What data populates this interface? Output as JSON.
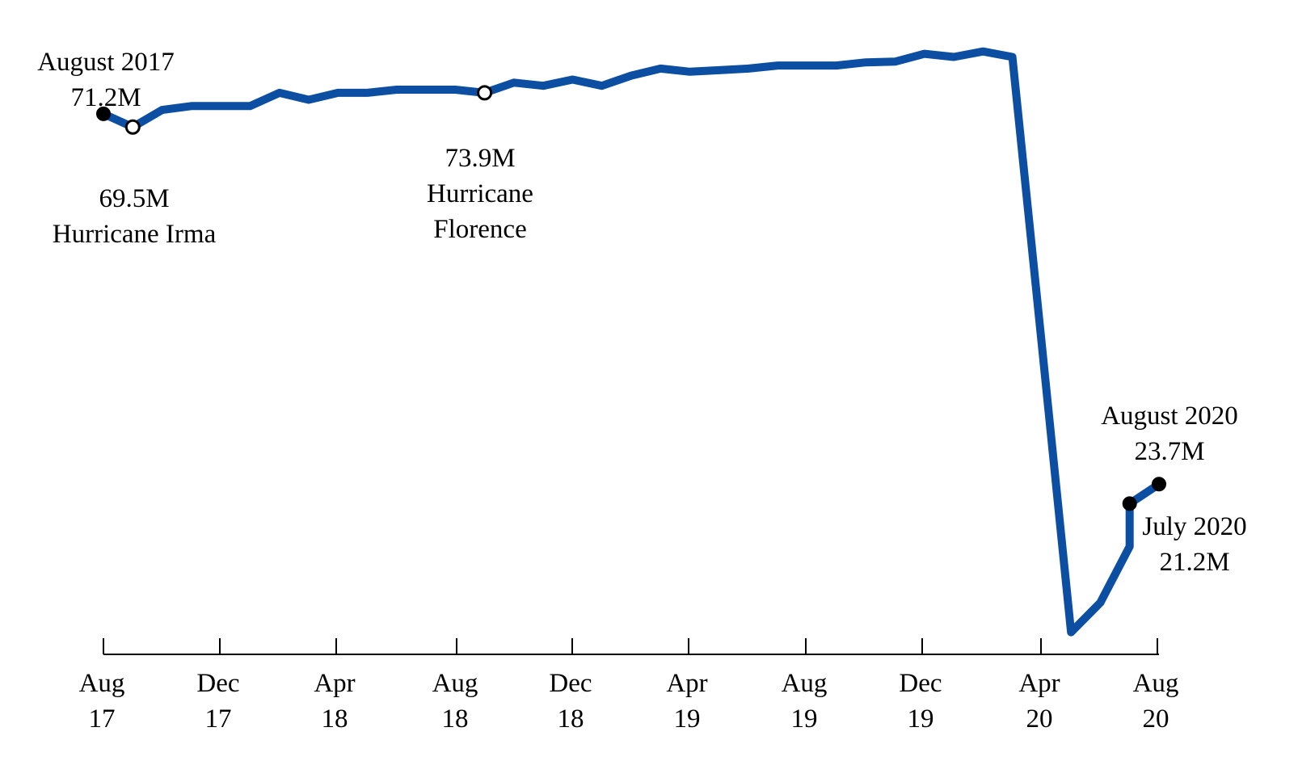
{
  "chart_data": {
    "type": "line",
    "x_tick_labels": [
      {
        "month": "Aug",
        "year": "17"
      },
      {
        "month": "Dec",
        "year": "17"
      },
      {
        "month": "Apr",
        "year": "18"
      },
      {
        "month": "Aug",
        "year": "18"
      },
      {
        "month": "Dec",
        "year": "18"
      },
      {
        "month": "Apr",
        "year": "19"
      },
      {
        "month": "Aug",
        "year": "19"
      },
      {
        "month": "Dec",
        "year": "19"
      },
      {
        "month": "Apr",
        "year": "20"
      },
      {
        "month": "Aug",
        "year": "20"
      }
    ],
    "x_range": [
      "2017-08",
      "2020-08"
    ],
    "grid": false,
    "y_axis_shown": false,
    "series": [
      {
        "color": "#0b4ea2",
        "points": [
          {
            "x": "2017-08",
            "y": 71.2
          },
          {
            "x": "2017-09",
            "y": 69.5
          },
          {
            "x": "2017-10",
            "y": 71.7
          },
          {
            "x": "2017-11",
            "y": 72.2
          },
          {
            "x": "2017-12",
            "y": 72.2
          },
          {
            "x": "2018-01",
            "y": 72.2
          },
          {
            "x": "2018-02",
            "y": 73.9
          },
          {
            "x": "2018-03",
            "y": 73.0
          },
          {
            "x": "2018-04",
            "y": 73.9
          },
          {
            "x": "2018-05",
            "y": 73.9
          },
          {
            "x": "2018-06",
            "y": 74.3
          },
          {
            "x": "2018-07",
            "y": 74.3
          },
          {
            "x": "2018-08",
            "y": 74.3
          },
          {
            "x": "2018-09",
            "y": 73.9
          },
          {
            "x": "2018-10",
            "y": 75.2
          },
          {
            "x": "2018-11",
            "y": 74.8
          },
          {
            "x": "2018-12",
            "y": 75.6
          },
          {
            "x": "2019-01",
            "y": 74.8
          },
          {
            "x": "2019-02",
            "y": 76.1
          },
          {
            "x": "2019-03",
            "y": 77.0
          },
          {
            "x": "2019-04",
            "y": 76.6
          },
          {
            "x": "2019-05",
            "y": 76.8
          },
          {
            "x": "2019-06",
            "y": 77.0
          },
          {
            "x": "2019-07",
            "y": 77.4
          },
          {
            "x": "2019-08",
            "y": 77.4
          },
          {
            "x": "2019-09",
            "y": 77.4
          },
          {
            "x": "2019-10",
            "y": 77.8
          },
          {
            "x": "2019-11",
            "y": 77.9
          },
          {
            "x": "2019-12",
            "y": 78.9
          },
          {
            "x": "2020-01",
            "y": 78.5
          },
          {
            "x": "2020-02",
            "y": 79.2
          },
          {
            "x": "2020-03",
            "y": 78.5
          },
          {
            "x": "2020-04-01",
            "y": 41.7
          },
          {
            "x": "2020-05",
            "y": 4.7
          },
          {
            "x": "2020-06",
            "y": 8.5
          },
          {
            "x": "2020-07-01",
            "y": 15.7
          },
          {
            "x": "2020-07",
            "y": 21.2
          },
          {
            "x": "2020-08",
            "y": 23.7
          }
        ]
      }
    ],
    "markers": [
      {
        "x": "2017-08",
        "y": 71.2,
        "style": "filled"
      },
      {
        "x": "2017-09",
        "y": 69.5,
        "style": "hollow"
      },
      {
        "x": "2018-09",
        "y": 73.9,
        "style": "hollow"
      },
      {
        "x": "2020-07",
        "y": 21.2,
        "style": "filled"
      },
      {
        "x": "2020-08",
        "y": 23.7,
        "style": "filled"
      }
    ],
    "annotations": [
      {
        "lines": [
          "August 2017",
          "71.2M"
        ],
        "anchor": "above"
      },
      {
        "lines": [
          "69.5M",
          "Hurricane Irma"
        ],
        "anchor": "below"
      },
      {
        "lines": [
          "73.9M",
          "Hurricane",
          "Florence"
        ],
        "anchor": "below"
      },
      {
        "lines": [
          "August 2020",
          "23.7M"
        ],
        "anchor": "above"
      },
      {
        "lines": [
          "July 2020",
          "21.2M"
        ],
        "anchor": "below-right"
      }
    ]
  }
}
